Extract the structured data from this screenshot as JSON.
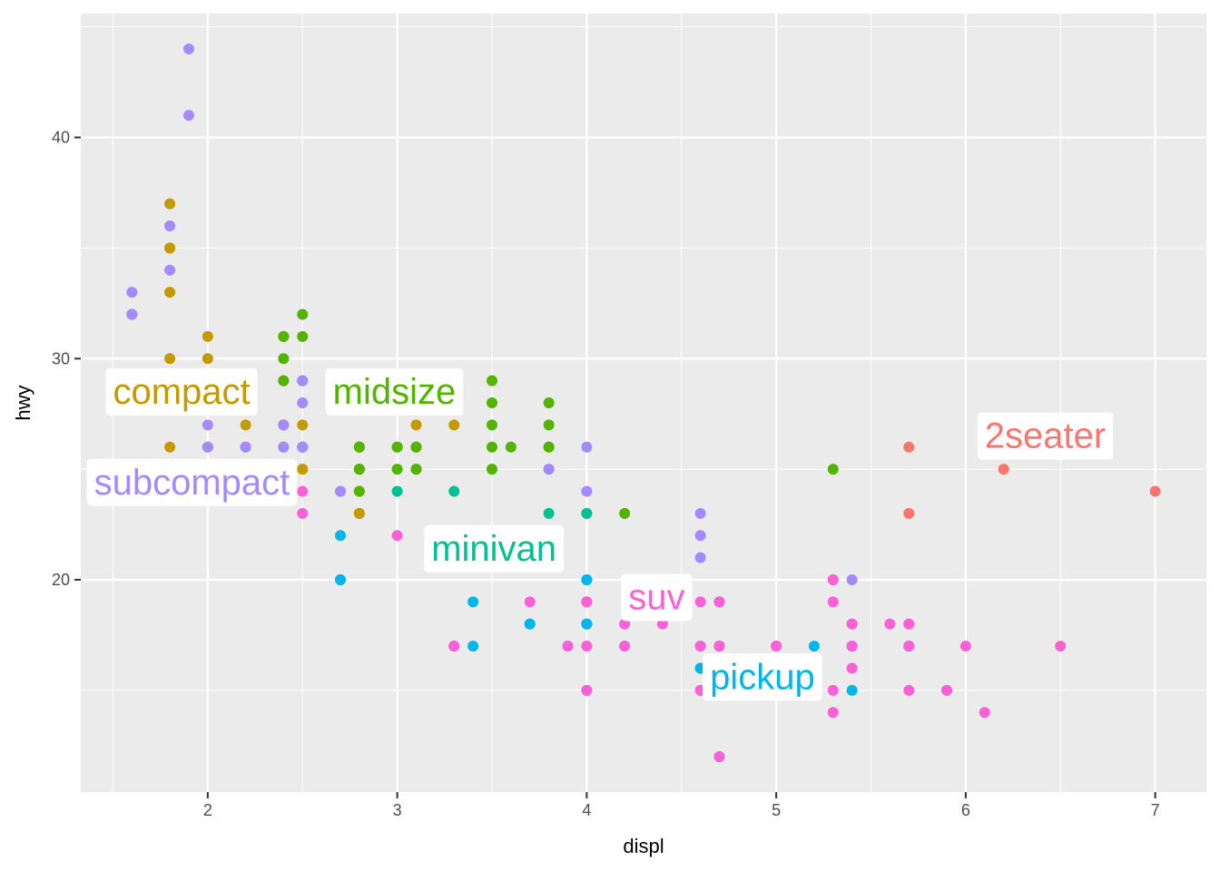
{
  "chart_data": {
    "type": "scatter",
    "xlabel": "displ",
    "ylabel": "hwy",
    "xlim": [
      1.33,
      7.27
    ],
    "ylim": [
      10.4,
      45.6
    ],
    "x_ticks": [
      2,
      3,
      4,
      5,
      6,
      7
    ],
    "y_ticks": [
      20,
      30,
      40
    ],
    "grid": true,
    "legend": "none",
    "classes": [
      {
        "name": "2seater",
        "color": "#F8766D"
      },
      {
        "name": "compact",
        "color": "#C49A00"
      },
      {
        "name": "midsize",
        "color": "#53B400"
      },
      {
        "name": "minivan",
        "color": "#00C094"
      },
      {
        "name": "pickup",
        "color": "#00B6EB"
      },
      {
        "name": "subcompact",
        "color": "#A58AFF"
      },
      {
        "name": "suv",
        "color": "#FB61D7"
      }
    ],
    "labels": [
      {
        "class": "2seater",
        "text": "2seater",
        "x": 6.1,
        "y": 26.4
      },
      {
        "class": "compact",
        "text": "compact",
        "x": 1.5,
        "y": 28.4
      },
      {
        "class": "midsize",
        "text": "midsize",
        "x": 2.66,
        "y": 28.4
      },
      {
        "class": "minivan",
        "text": "minivan",
        "x": 3.18,
        "y": 21.3
      },
      {
        "class": "pickup",
        "text": "pickup",
        "x": 4.65,
        "y": 15.5
      },
      {
        "class": "subcompact",
        "text": "subcompact",
        "x": 1.4,
        "y": 24.3
      },
      {
        "class": "suv",
        "text": "suv",
        "x": 4.22,
        "y": 19.1
      }
    ],
    "series": [
      {
        "class": "2seater",
        "points": [
          [
            5.7,
            26
          ],
          [
            5.7,
            23
          ],
          [
            6.2,
            26
          ],
          [
            6.2,
            25
          ],
          [
            7.0,
            24
          ]
        ]
      },
      {
        "class": "compact",
        "points": [
          [
            1.8,
            29
          ],
          [
            1.8,
            29
          ],
          [
            2.0,
            31
          ],
          [
            2.0,
            30
          ],
          [
            2.8,
            26
          ],
          [
            2.8,
            26
          ],
          [
            3.1,
            27
          ],
          [
            1.8,
            26
          ],
          [
            1.8,
            25
          ],
          [
            2.0,
            28
          ],
          [
            2.0,
            29
          ],
          [
            2.8,
            25
          ],
          [
            2.8,
            25
          ],
          [
            3.1,
            25
          ],
          [
            3.1,
            25
          ],
          [
            2.2,
            29
          ],
          [
            2.2,
            27
          ],
          [
            2.4,
            31
          ],
          [
            2.4,
            31
          ],
          [
            3.0,
            26
          ],
          [
            3.0,
            26
          ],
          [
            3.3,
            28
          ],
          [
            1.8,
            30
          ],
          [
            1.8,
            33
          ],
          [
            1.8,
            35
          ],
          [
            1.8,
            37
          ],
          [
            1.8,
            35
          ],
          [
            2.0,
            29
          ],
          [
            2.0,
            26
          ],
          [
            2.0,
            29
          ],
          [
            2.5,
            29
          ],
          [
            2.5,
            27
          ],
          [
            2.4,
            29
          ],
          [
            2.4,
            27
          ],
          [
            3.3,
            27
          ],
          [
            2.5,
            25
          ],
          [
            2.5,
            25
          ],
          [
            2.8,
            24
          ],
          [
            2.8,
            23
          ],
          [
            2.8,
            23
          ]
        ]
      },
      {
        "class": "midsize",
        "points": [
          [
            2.4,
            30
          ],
          [
            3.0,
            26
          ],
          [
            3.1,
            25
          ],
          [
            3.5,
            27
          ],
          [
            2.4,
            27
          ],
          [
            2.5,
            26
          ],
          [
            3.5,
            29
          ],
          [
            3.5,
            28
          ],
          [
            3.8,
            28
          ],
          [
            3.8,
            27
          ],
          [
            2.4,
            31
          ],
          [
            2.5,
            32
          ],
          [
            2.5,
            31
          ],
          [
            3.3,
            28
          ],
          [
            3.5,
            26
          ],
          [
            3.5,
            25
          ],
          [
            3.6,
            26
          ],
          [
            3.8,
            26
          ],
          [
            4.0,
            23
          ],
          [
            4.2,
            23
          ],
          [
            2.4,
            26
          ],
          [
            2.4,
            24
          ],
          [
            3.0,
            25
          ],
          [
            3.1,
            26
          ],
          [
            5.3,
            25
          ],
          [
            2.8,
            26
          ],
          [
            2.8,
            25
          ],
          [
            2.8,
            26
          ],
          [
            3.1,
            26
          ],
          [
            3.8,
            26
          ],
          [
            2.4,
            29
          ],
          [
            2.5,
            26
          ],
          [
            2.8,
            25
          ],
          [
            2.8,
            24
          ],
          [
            3.1,
            26
          ]
        ]
      },
      {
        "class": "minivan",
        "points": [
          [
            2.4,
            24
          ],
          [
            3.0,
            24
          ],
          [
            3.3,
            22
          ],
          [
            3.3,
            24
          ],
          [
            3.3,
            22
          ],
          [
            3.8,
            21
          ],
          [
            3.8,
            22
          ],
          [
            3.8,
            23
          ],
          [
            4.0,
            23
          ],
          [
            3.3,
            17
          ],
          [
            3.8,
            22
          ]
        ]
      },
      {
        "class": "pickup",
        "points": [
          [
            4.7,
            17
          ],
          [
            4.7,
            16
          ],
          [
            4.7,
            16
          ],
          [
            5.2,
            15
          ],
          [
            5.2,
            16
          ],
          [
            3.9,
            17
          ],
          [
            4.7,
            17
          ],
          [
            4.7,
            16
          ],
          [
            4.7,
            12
          ],
          [
            5.2,
            17
          ],
          [
            5.7,
            17
          ],
          [
            5.9,
            15
          ],
          [
            4.6,
            17
          ],
          [
            5.4,
            17
          ],
          [
            5.4,
            15
          ],
          [
            4.0,
            20
          ],
          [
            4.0,
            18
          ],
          [
            4.0,
            20
          ],
          [
            4.6,
            16
          ],
          [
            5.4,
            17
          ],
          [
            2.7,
            22
          ],
          [
            2.7,
            20
          ],
          [
            2.7,
            20
          ],
          [
            3.4,
            19
          ],
          [
            3.4,
            17
          ],
          [
            4.0,
            18
          ],
          [
            4.0,
            18
          ],
          [
            4.0,
            20
          ],
          [
            4.7,
            17
          ],
          [
            4.6,
            16
          ],
          [
            3.7,
            18
          ],
          [
            3.7,
            18
          ],
          [
            4.2,
            17
          ]
        ]
      },
      {
        "class": "subcompact",
        "points": [
          [
            3.8,
            25
          ],
          [
            3.8,
            25
          ],
          [
            4.0,
            24
          ],
          [
            4.6,
            23
          ],
          [
            4.6,
            22
          ],
          [
            4.6,
            21
          ],
          [
            5.4,
            20
          ],
          [
            1.6,
            33
          ],
          [
            1.6,
            32
          ],
          [
            1.6,
            32
          ],
          [
            1.6,
            29
          ],
          [
            1.6,
            32
          ],
          [
            1.8,
            34
          ],
          [
            1.8,
            36
          ],
          [
            1.8,
            36
          ],
          [
            2.0,
            29
          ],
          [
            2.4,
            26
          ],
          [
            2.4,
            27
          ],
          [
            2.5,
            29
          ],
          [
            2.5,
            26
          ],
          [
            2.2,
            26
          ],
          [
            2.2,
            26
          ],
          [
            2.5,
            26
          ],
          [
            2.5,
            28
          ],
          [
            1.9,
            44
          ],
          [
            2.0,
            29
          ],
          [
            2.0,
            26
          ],
          [
            2.0,
            29
          ],
          [
            2.7,
            24
          ],
          [
            2.0,
            26
          ],
          [
            4.0,
            26
          ],
          [
            1.9,
            41
          ],
          [
            2.5,
            26
          ],
          [
            2.5,
            29
          ],
          [
            2.0,
            27
          ]
        ]
      },
      {
        "class": "suv",
        "points": [
          [
            5.3,
            20
          ],
          [
            5.3,
            15
          ],
          [
            5.3,
            20
          ],
          [
            5.7,
            17
          ],
          [
            6.0,
            17
          ],
          [
            5.7,
            17
          ],
          [
            5.7,
            18
          ],
          [
            6.2,
            26
          ],
          [
            6.5,
            17
          ],
          [
            3.7,
            19
          ],
          [
            3.9,
            17
          ],
          [
            4.7,
            19
          ],
          [
            4.7,
            19
          ],
          [
            4.7,
            17
          ],
          [
            5.2,
            15
          ],
          [
            5.7,
            17
          ],
          [
            5.9,
            15
          ],
          [
            4.7,
            17
          ],
          [
            4.7,
            19
          ],
          [
            4.7,
            17
          ],
          [
            5.7,
            17
          ],
          [
            6.1,
            14
          ],
          [
            5.3,
            20
          ],
          [
            5.4,
            18
          ],
          [
            4.2,
            18
          ],
          [
            4.6,
            17
          ],
          [
            5.4,
            17
          ],
          [
            5.4,
            17
          ],
          [
            4.0,
            19
          ],
          [
            4.0,
            19
          ],
          [
            4.6,
            15
          ],
          [
            5.0,
            17
          ],
          [
            4.0,
            17
          ],
          [
            4.0,
            15
          ],
          [
            4.6,
            17
          ],
          [
            5.0,
            17
          ],
          [
            3.3,
            17
          ],
          [
            3.3,
            17
          ],
          [
            4.0,
            19
          ],
          [
            4.0,
            19
          ],
          [
            4.7,
            15
          ],
          [
            4.7,
            12
          ],
          [
            5.7,
            18
          ],
          [
            5.6,
            18
          ],
          [
            5.4,
            16
          ],
          [
            5.3,
            14
          ],
          [
            4.7,
            15
          ],
          [
            4.7,
            17
          ],
          [
            4.4,
            18
          ],
          [
            5.4,
            18
          ],
          [
            2.5,
            24
          ],
          [
            2.5,
            23
          ],
          [
            3.0,
            22
          ],
          [
            4.2,
            17
          ],
          [
            4.7,
            19
          ],
          [
            5.3,
            19
          ],
          [
            5.7,
            15
          ],
          [
            4.6,
            19
          ],
          [
            4.6,
            15
          ],
          [
            5.0,
            17
          ],
          [
            4.0,
            17
          ],
          [
            4.0,
            15
          ]
        ]
      }
    ]
  }
}
